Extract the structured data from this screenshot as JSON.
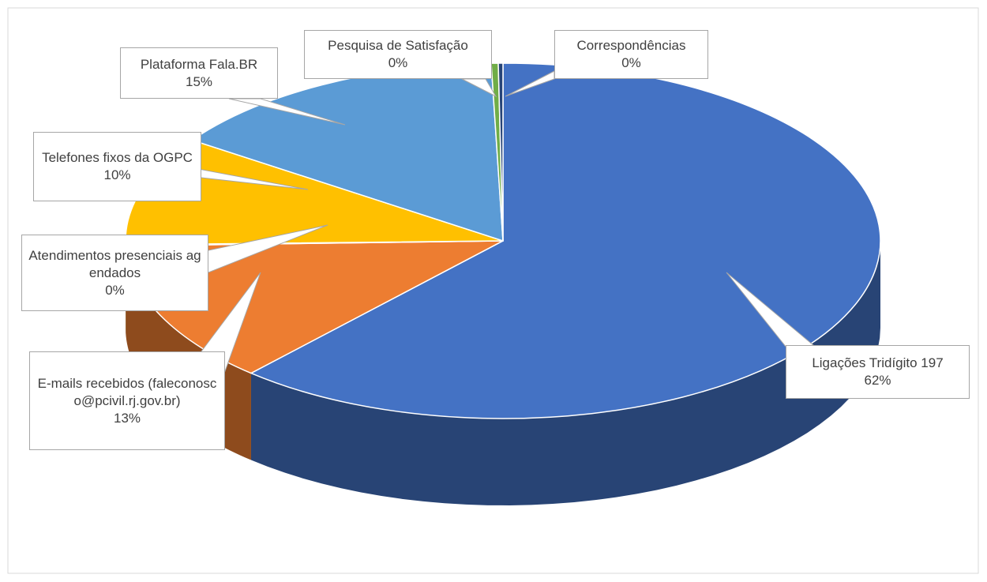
{
  "chart_data": {
    "type": "pie3d",
    "categories": [
      "Ligações Tridígito 197",
      "E-mails recebidos (faleconosco@pcivil.rj.gov.br)",
      "Atendimentos presenciais agendados",
      "Telefones fixos da OGPC",
      "Plataforma Fala.BR",
      "Pesquisa de Satisfação",
      "Correspondências"
    ],
    "values": [
      62,
      13,
      0.1,
      10,
      15,
      0.3,
      0.2
    ],
    "value_labels": [
      "62%",
      "13%",
      "0%",
      "10%",
      "15%",
      "0%",
      "0%"
    ],
    "colors": [
      "#4472c4",
      "#ed7d31",
      "#a5a5a5",
      "#ffc000",
      "#5b9bd5",
      "#70ad47",
      "#264478"
    ]
  }
}
